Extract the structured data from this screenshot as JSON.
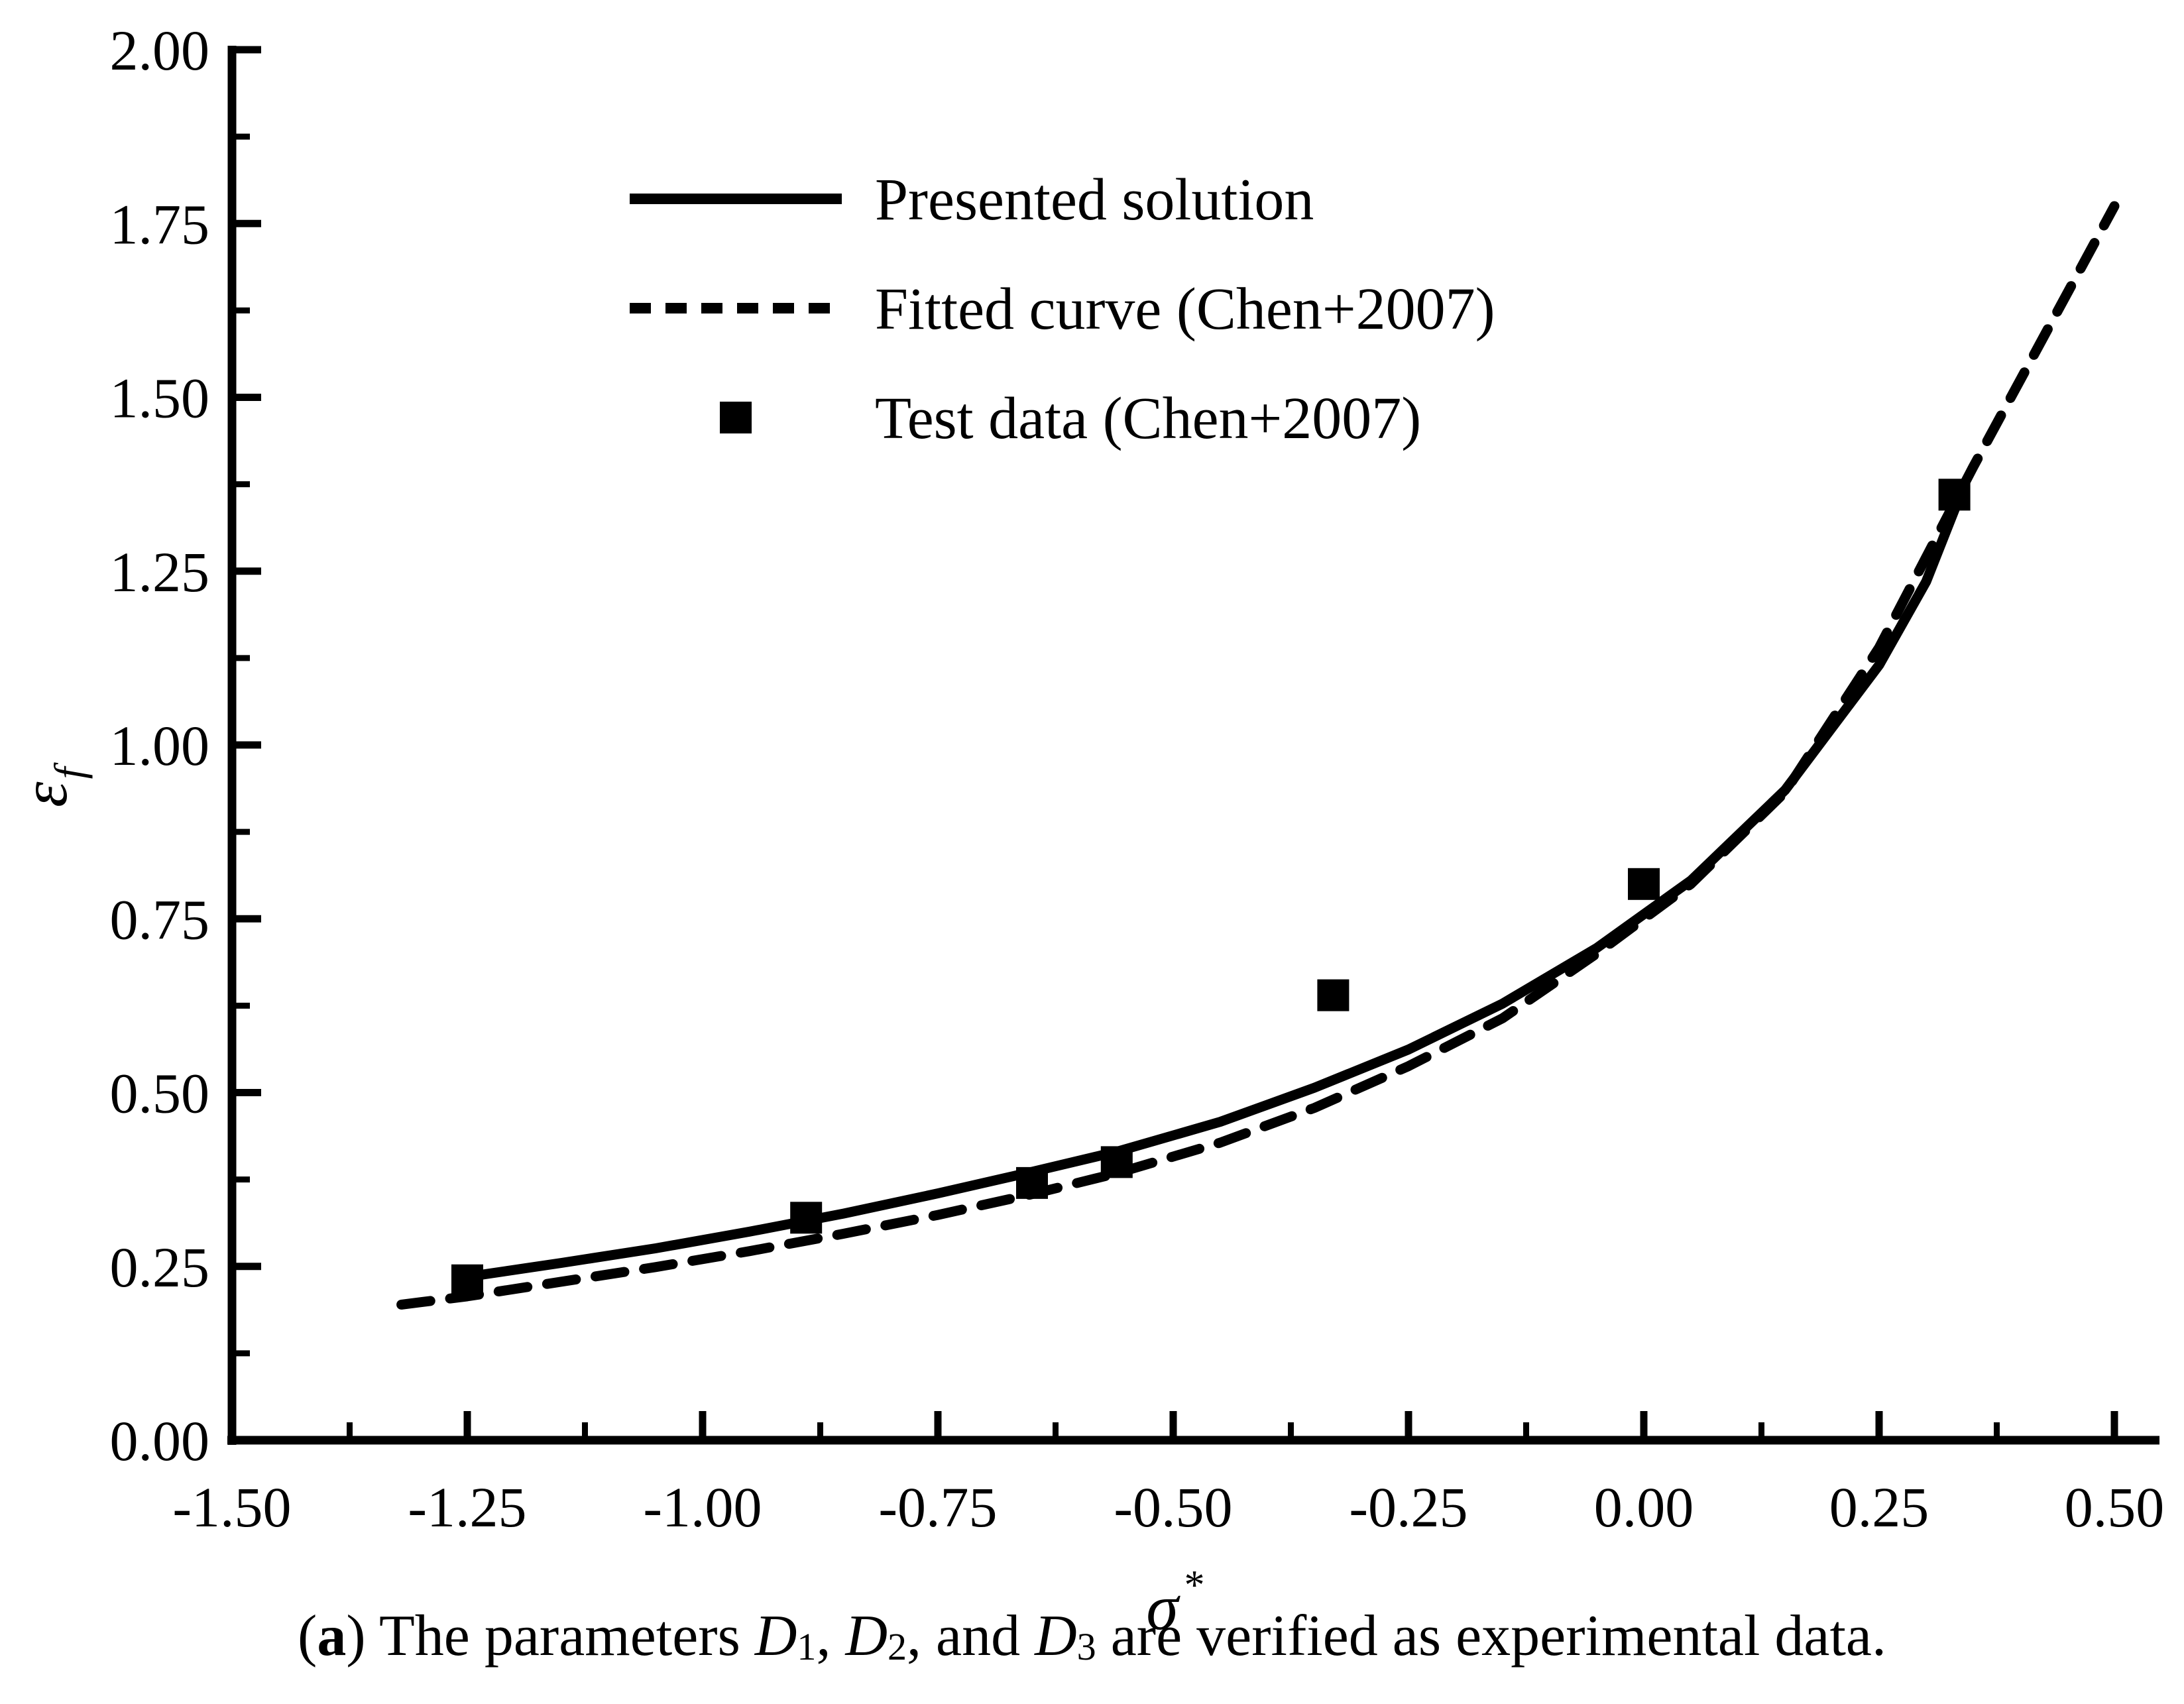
{
  "page": {
    "background": "#ffffff",
    "ink": "#000000"
  },
  "chart_data": {
    "type": "line",
    "title": "",
    "xlabel": {
      "base": "σ",
      "sup": "*"
    },
    "ylabel": {
      "base": "ε",
      "sub": "f"
    },
    "xlim": [
      -1.5,
      0.5
    ],
    "ylim": [
      0.0,
      2.0
    ],
    "grid": false,
    "x_axis": {
      "tick_values": [
        -1.5,
        -1.25,
        -1.0,
        -0.75,
        -0.5,
        -0.25,
        0.0,
        0.25,
        0.5
      ],
      "tick_labels": [
        "-1.50",
        "-1.25",
        "-1.00",
        "-0.75",
        "-0.50",
        "-0.25",
        "0.00",
        "0.25",
        "0.50"
      ],
      "minor_tick_values": [
        -1.375,
        -1.125,
        -0.875,
        -0.625,
        -0.375,
        -0.125,
        0.125,
        0.375
      ]
    },
    "y_axis": {
      "tick_values": [
        0.0,
        0.25,
        0.5,
        0.75,
        1.0,
        1.25,
        1.5,
        1.75,
        2.0
      ],
      "tick_labels": [
        "0.00",
        "0.25",
        "0.50",
        "0.75",
        "1.00",
        "1.25",
        "1.50",
        "1.75",
        "2.00"
      ],
      "minor_tick_values": [
        0.125,
        0.375,
        0.625,
        0.875,
        1.125,
        1.375,
        1.625,
        1.875
      ]
    },
    "legend": {
      "position": "top-left-inside",
      "entries": [
        {
          "label": "Presented solution",
          "marker": "solid-line"
        },
        {
          "label": "Fitted curve (Chen+2007)",
          "marker": "dashed-line"
        },
        {
          "label": "Test data (Chen+2007)",
          "marker": "filled-square"
        }
      ]
    },
    "series": [
      {
        "name": "Presented solution",
        "type": "line",
        "style": "solid",
        "points": [
          [
            -1.26,
            0.233
          ],
          [
            -1.15,
            0.255
          ],
          [
            -1.05,
            0.276
          ],
          [
            -0.95,
            0.3
          ],
          [
            -0.85,
            0.326
          ],
          [
            -0.75,
            0.355
          ],
          [
            -0.65,
            0.386
          ],
          [
            -0.56,
            0.415
          ],
          [
            -0.45,
            0.458
          ],
          [
            -0.35,
            0.507
          ],
          [
            -0.25,
            0.562
          ],
          [
            -0.15,
            0.628
          ],
          [
            -0.05,
            0.708
          ],
          [
            0.05,
            0.805
          ],
          [
            0.15,
            0.935
          ],
          [
            0.25,
            1.115
          ],
          [
            0.3,
            1.235
          ],
          [
            0.335,
            1.355
          ]
        ]
      },
      {
        "name": "Fitted curve (Chen+2007)",
        "type": "line",
        "style": "dashed",
        "points": [
          [
            -1.32,
            0.195
          ],
          [
            -1.25,
            0.207
          ],
          [
            -1.15,
            0.228
          ],
          [
            -1.05,
            0.249
          ],
          [
            -0.95,
            0.272
          ],
          [
            -0.85,
            0.297
          ],
          [
            -0.75,
            0.324
          ],
          [
            -0.65,
            0.354
          ],
          [
            -0.56,
            0.384
          ],
          [
            -0.45,
            0.428
          ],
          [
            -0.35,
            0.478
          ],
          [
            -0.25,
            0.538
          ],
          [
            -0.15,
            0.607
          ],
          [
            -0.05,
            0.7
          ],
          [
            0.05,
            0.8
          ],
          [
            0.15,
            0.932
          ],
          [
            0.25,
            1.14
          ],
          [
            0.35,
            1.4
          ],
          [
            0.43,
            1.6
          ],
          [
            0.5,
            1.775
          ]
        ]
      },
      {
        "name": "Test data (Chen+2007)",
        "type": "scatter",
        "marker": "square",
        "points": [
          [
            -1.25,
            0.23
          ],
          [
            -0.89,
            0.32
          ],
          [
            -0.65,
            0.37
          ],
          [
            -0.56,
            0.4
          ],
          [
            -0.33,
            0.64
          ],
          [
            0.0,
            0.8
          ],
          [
            0.33,
            1.36
          ]
        ]
      }
    ]
  },
  "caption": {
    "segments": [
      {
        "text": "(",
        "style": "plain"
      },
      {
        "text": "a",
        "style": "bold"
      },
      {
        "text": ") The parameters ",
        "style": "plain"
      },
      {
        "text": "D",
        "style": "italic"
      },
      {
        "text": "1",
        "style": "sub"
      },
      {
        "text": ", ",
        "style": "plain"
      },
      {
        "text": "D",
        "style": "italic"
      },
      {
        "text": "2",
        "style": "sub"
      },
      {
        "text": ", and ",
        "style": "plain"
      },
      {
        "text": "D",
        "style": "italic"
      },
      {
        "text": "3",
        "style": "sub"
      },
      {
        "text": " are verified as experimental data.",
        "style": "plain"
      }
    ]
  }
}
